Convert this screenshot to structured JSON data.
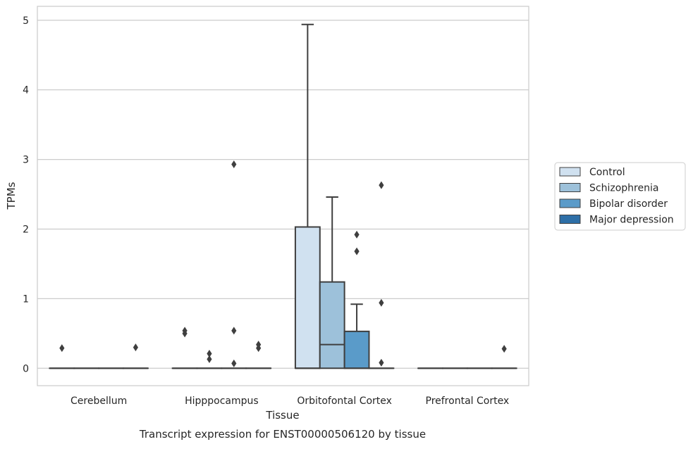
{
  "chart_data": {
    "type": "box",
    "title": "Transcript expression for ENST00000506120 by tissue",
    "xlabel": "Tissue",
    "ylabel": "TPMs",
    "categories": [
      "Cerebellum",
      "Hipppocampus",
      "Orbitofontal Cortex",
      "Prefrontal Cortex"
    ],
    "ylim": [
      -0.25,
      5.2
    ],
    "yticks": [
      0,
      1,
      2,
      3,
      4,
      5
    ],
    "grid": true,
    "legend_position": "right",
    "series": [
      {
        "name": "Control",
        "color": "#d0e1f0",
        "boxes": [
          {
            "q1": 0,
            "median": 0,
            "q3": 0,
            "whisker_low": 0,
            "whisker_high": 0,
            "outliers": [
              0.29
            ]
          },
          {
            "q1": 0,
            "median": 0,
            "q3": 0,
            "whisker_low": 0,
            "whisker_high": 0,
            "outliers": [
              0.5,
              0.54
            ]
          },
          {
            "q1": 0,
            "median": 0,
            "q3": 2.03,
            "whisker_low": 0,
            "whisker_high": 4.94,
            "outliers": []
          },
          {
            "q1": 0,
            "median": 0,
            "q3": 0,
            "whisker_low": 0,
            "whisker_high": 0,
            "outliers": []
          }
        ]
      },
      {
        "name": "Schizophrenia",
        "color": "#9dc1da",
        "boxes": [
          {
            "q1": 0,
            "median": 0,
            "q3": 0,
            "whisker_low": 0,
            "whisker_high": 0,
            "outliers": []
          },
          {
            "q1": 0,
            "median": 0,
            "q3": 0,
            "whisker_low": 0,
            "whisker_high": 0,
            "outliers": [
              0.13,
              0.21
            ]
          },
          {
            "q1": 0,
            "median": 0.34,
            "q3": 1.24,
            "whisker_low": 0,
            "whisker_high": 2.46,
            "outliers": []
          },
          {
            "q1": 0,
            "median": 0,
            "q3": 0,
            "whisker_low": 0,
            "whisker_high": 0,
            "outliers": []
          }
        ]
      },
      {
        "name": "Bipolar disorder",
        "color": "#5a9bc9",
        "boxes": [
          {
            "q1": 0,
            "median": 0,
            "q3": 0,
            "whisker_low": 0,
            "whisker_high": 0,
            "outliers": []
          },
          {
            "q1": 0,
            "median": 0,
            "q3": 0,
            "whisker_low": 0,
            "whisker_high": 0,
            "outliers": [
              0.07,
              0.54,
              2.93
            ]
          },
          {
            "q1": 0,
            "median": 0,
            "q3": 0.53,
            "whisker_low": 0,
            "whisker_high": 0.92,
            "outliers": [
              1.68,
              1.92
            ]
          },
          {
            "q1": 0,
            "median": 0,
            "q3": 0,
            "whisker_low": 0,
            "whisker_high": 0,
            "outliers": []
          }
        ]
      },
      {
        "name": "Major depression",
        "color": "#2e6fa7",
        "boxes": [
          {
            "q1": 0,
            "median": 0,
            "q3": 0,
            "whisker_low": 0,
            "whisker_high": 0,
            "outliers": [
              0.3
            ]
          },
          {
            "q1": 0,
            "median": 0,
            "q3": 0,
            "whisker_low": 0,
            "whisker_high": 0,
            "outliers": [
              0.29,
              0.34
            ]
          },
          {
            "q1": 0,
            "median": 0,
            "q3": 0,
            "whisker_low": 0,
            "whisker_high": 0,
            "outliers": [
              0.08,
              0.94,
              2.63
            ]
          },
          {
            "q1": 0,
            "median": 0,
            "q3": 0,
            "whisker_low": 0,
            "whisker_high": 0,
            "outliers": [
              0.28
            ]
          }
        ]
      }
    ]
  }
}
